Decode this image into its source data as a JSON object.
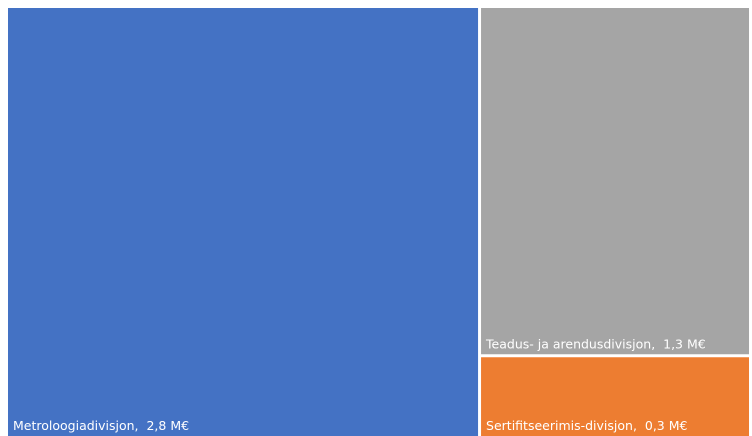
{
  "chart_data": {
    "type": "treemap",
    "unit": "M€",
    "items": [
      {
        "label": "Metroloogiadivisjon,  2,8 M€",
        "value": 2.8,
        "color": "#4472C4"
      },
      {
        "label": "Teadus- ja arendusdivisjon,  1,3 M€",
        "value": 1.3,
        "color": "#A5A5A5"
      },
      {
        "label": "Sertifitseerimis-divisjon,  0,3 M€",
        "value": 0.3,
        "color": "#ED7D31"
      }
    ]
  }
}
